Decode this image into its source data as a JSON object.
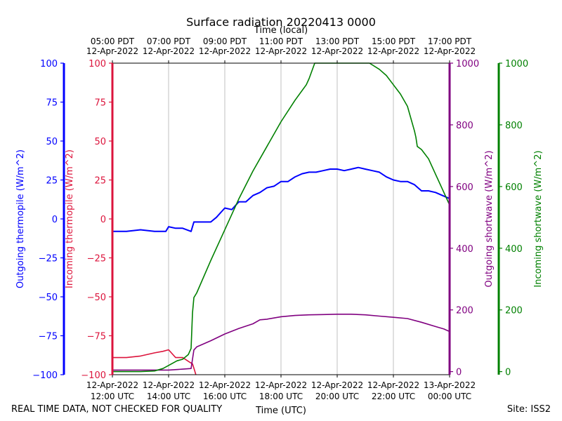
{
  "chart_data": {
    "type": "line",
    "title": "Surface radiation 20220413 0000",
    "top_axis_label": "Time (local)",
    "xlabel": "Time (UTC)",
    "footer_left": "REAL TIME DATA, NOT CHECKED FOR QUALITY",
    "footer_right": "Site: ISS2",
    "x_range_hours_utc": [
      12,
      24
    ],
    "bottom_ticks": [
      {
        "h": 12,
        "line1": "12-Apr-2022",
        "line2": "12:00 UTC"
      },
      {
        "h": 14,
        "line1": "12-Apr-2022",
        "line2": "14:00 UTC"
      },
      {
        "h": 16,
        "line1": "12-Apr-2022",
        "line2": "16:00 UTC"
      },
      {
        "h": 18,
        "line1": "12-Apr-2022",
        "line2": "18:00 UTC"
      },
      {
        "h": 20,
        "line1": "12-Apr-2022",
        "line2": "20:00 UTC"
      },
      {
        "h": 22,
        "line1": "12-Apr-2022",
        "line2": "22:00 UTC"
      },
      {
        "h": 24,
        "line1": "13-Apr-2022",
        "line2": "00:00 UTC"
      }
    ],
    "top_ticks": [
      {
        "h": 12,
        "line1": "05:00 PDT",
        "line2": "12-Apr-2022"
      },
      {
        "h": 14,
        "line1": "07:00 PDT",
        "line2": "12-Apr-2022"
      },
      {
        "h": 16,
        "line1": "09:00 PDT",
        "line2": "12-Apr-2022"
      },
      {
        "h": 18,
        "line1": "11:00 PDT",
        "line2": "12-Apr-2022"
      },
      {
        "h": 20,
        "line1": "13:00 PDT",
        "line2": "12-Apr-2022"
      },
      {
        "h": 22,
        "line1": "15:00 PDT",
        "line2": "12-Apr-2022"
      },
      {
        "h": 24,
        "line1": "17:00 PDT",
        "line2": "12-Apr-2022"
      }
    ],
    "axes": [
      {
        "id": "out_thermo",
        "label": "Outgoing thermopile (W/m^2)",
        "color": "#0000ff",
        "ylim": [
          -100,
          100
        ],
        "ticks": [
          -100,
          -75,
          -50,
          -25,
          0,
          25,
          50,
          75,
          100
        ]
      },
      {
        "id": "in_thermo",
        "label": "Incoming thermopile (W/m^2)",
        "color": "#dc143c",
        "ylim": [
          -100,
          100
        ],
        "ticks": [
          -100,
          -75,
          -50,
          -25,
          0,
          25,
          50,
          75,
          100
        ]
      },
      {
        "id": "out_sw",
        "label": "Outgoing shortwave (W/m^2)",
        "color": "#800080",
        "ylim": [
          -10,
          1000
        ],
        "ticks": [
          0,
          200,
          400,
          600,
          800,
          1000
        ]
      },
      {
        "id": "in_sw",
        "label": "Incoming shortwave (W/m^2)",
        "color": "#008000",
        "ylim": [
          -10,
          1000
        ],
        "ticks": [
          0,
          200,
          400,
          600,
          800,
          1000
        ]
      }
    ],
    "series": [
      {
        "name": "Outgoing thermopile",
        "axis": "out_thermo",
        "color": "#0000ff",
        "x": [
          12.0,
          12.5,
          13.0,
          13.5,
          13.9,
          14.0,
          14.25,
          14.5,
          14.8,
          14.9,
          15.0,
          15.25,
          15.5,
          15.7,
          16.0,
          16.25,
          16.5,
          16.75,
          17.0,
          17.25,
          17.5,
          17.75,
          18.0,
          18.25,
          18.5,
          18.75,
          19.0,
          19.25,
          19.5,
          19.75,
          20.0,
          20.25,
          20.5,
          20.75,
          21.0,
          21.25,
          21.5,
          21.75,
          22.0,
          22.25,
          22.5,
          22.75,
          23.0,
          23.25,
          23.5,
          23.75,
          24.0
        ],
        "values": [
          -8,
          -8,
          -7,
          -8,
          -8,
          -5,
          -6,
          -6,
          -8,
          -2,
          -2,
          -2,
          -2,
          1,
          7,
          6,
          11,
          11,
          15,
          17,
          20,
          21,
          24,
          24,
          27,
          29,
          30,
          30,
          31,
          32,
          32,
          31,
          32,
          33,
          32,
          31,
          30,
          27,
          25,
          24,
          24,
          22,
          18,
          18,
          17,
          15,
          13
        ]
      },
      {
        "name": "Incoming thermopile",
        "axis": "in_thermo",
        "color": "#dc143c",
        "x": [
          12.0,
          12.5,
          13.0,
          13.5,
          13.8,
          14.0,
          14.25,
          14.5,
          14.75,
          14.85,
          14.92,
          14.97
        ],
        "values": [
          -89,
          -89,
          -88,
          -86,
          -85,
          -84,
          -89,
          -89,
          -92,
          -93,
          -97,
          -100
        ]
      },
      {
        "name": "Outgoing shortwave",
        "axis": "out_sw",
        "color": "#800080",
        "x": [
          12.0,
          13.0,
          14.0,
          14.5,
          14.8,
          14.9,
          15.0,
          15.5,
          16.0,
          16.5,
          17.0,
          17.25,
          17.5,
          18.0,
          18.5,
          19.0,
          19.5,
          20.0,
          20.5,
          21.0,
          21.5,
          22.0,
          22.5,
          23.0,
          23.5,
          23.8,
          24.0
        ],
        "values": [
          5,
          5,
          5,
          8,
          10,
          70,
          80,
          100,
          122,
          140,
          155,
          168,
          170,
          178,
          182,
          184,
          185,
          186,
          186,
          184,
          180,
          176,
          172,
          160,
          146,
          138,
          130
        ]
      },
      {
        "name": "Incoming shortwave",
        "axis": "in_sw",
        "color": "#008000",
        "x": [
          12.0,
          12.5,
          13.0,
          13.5,
          13.8,
          14.0,
          14.3,
          14.5,
          14.7,
          14.8,
          14.85,
          14.9,
          15.0,
          15.5,
          16.0,
          16.5,
          17.0,
          17.5,
          18.0,
          18.5,
          18.9,
          19.0,
          19.2,
          19.5,
          20.0,
          20.5,
          21.0,
          21.15,
          21.5,
          21.75,
          22.0,
          22.25,
          22.5,
          22.75,
          22.8,
          22.85,
          23.0,
          23.25,
          23.5,
          23.75,
          24.0
        ],
        "values": [
          0,
          0,
          0,
          2,
          10,
          20,
          35,
          40,
          55,
          75,
          190,
          240,
          255,
          360,
          460,
          560,
          650,
          730,
          810,
          880,
          930,
          950,
          1000,
          1000,
          1000,
          1000,
          1000,
          1000,
          980,
          960,
          930,
          900,
          860,
          780,
          760,
          730,
          720,
          690,
          640,
          590,
          540
        ]
      }
    ]
  }
}
